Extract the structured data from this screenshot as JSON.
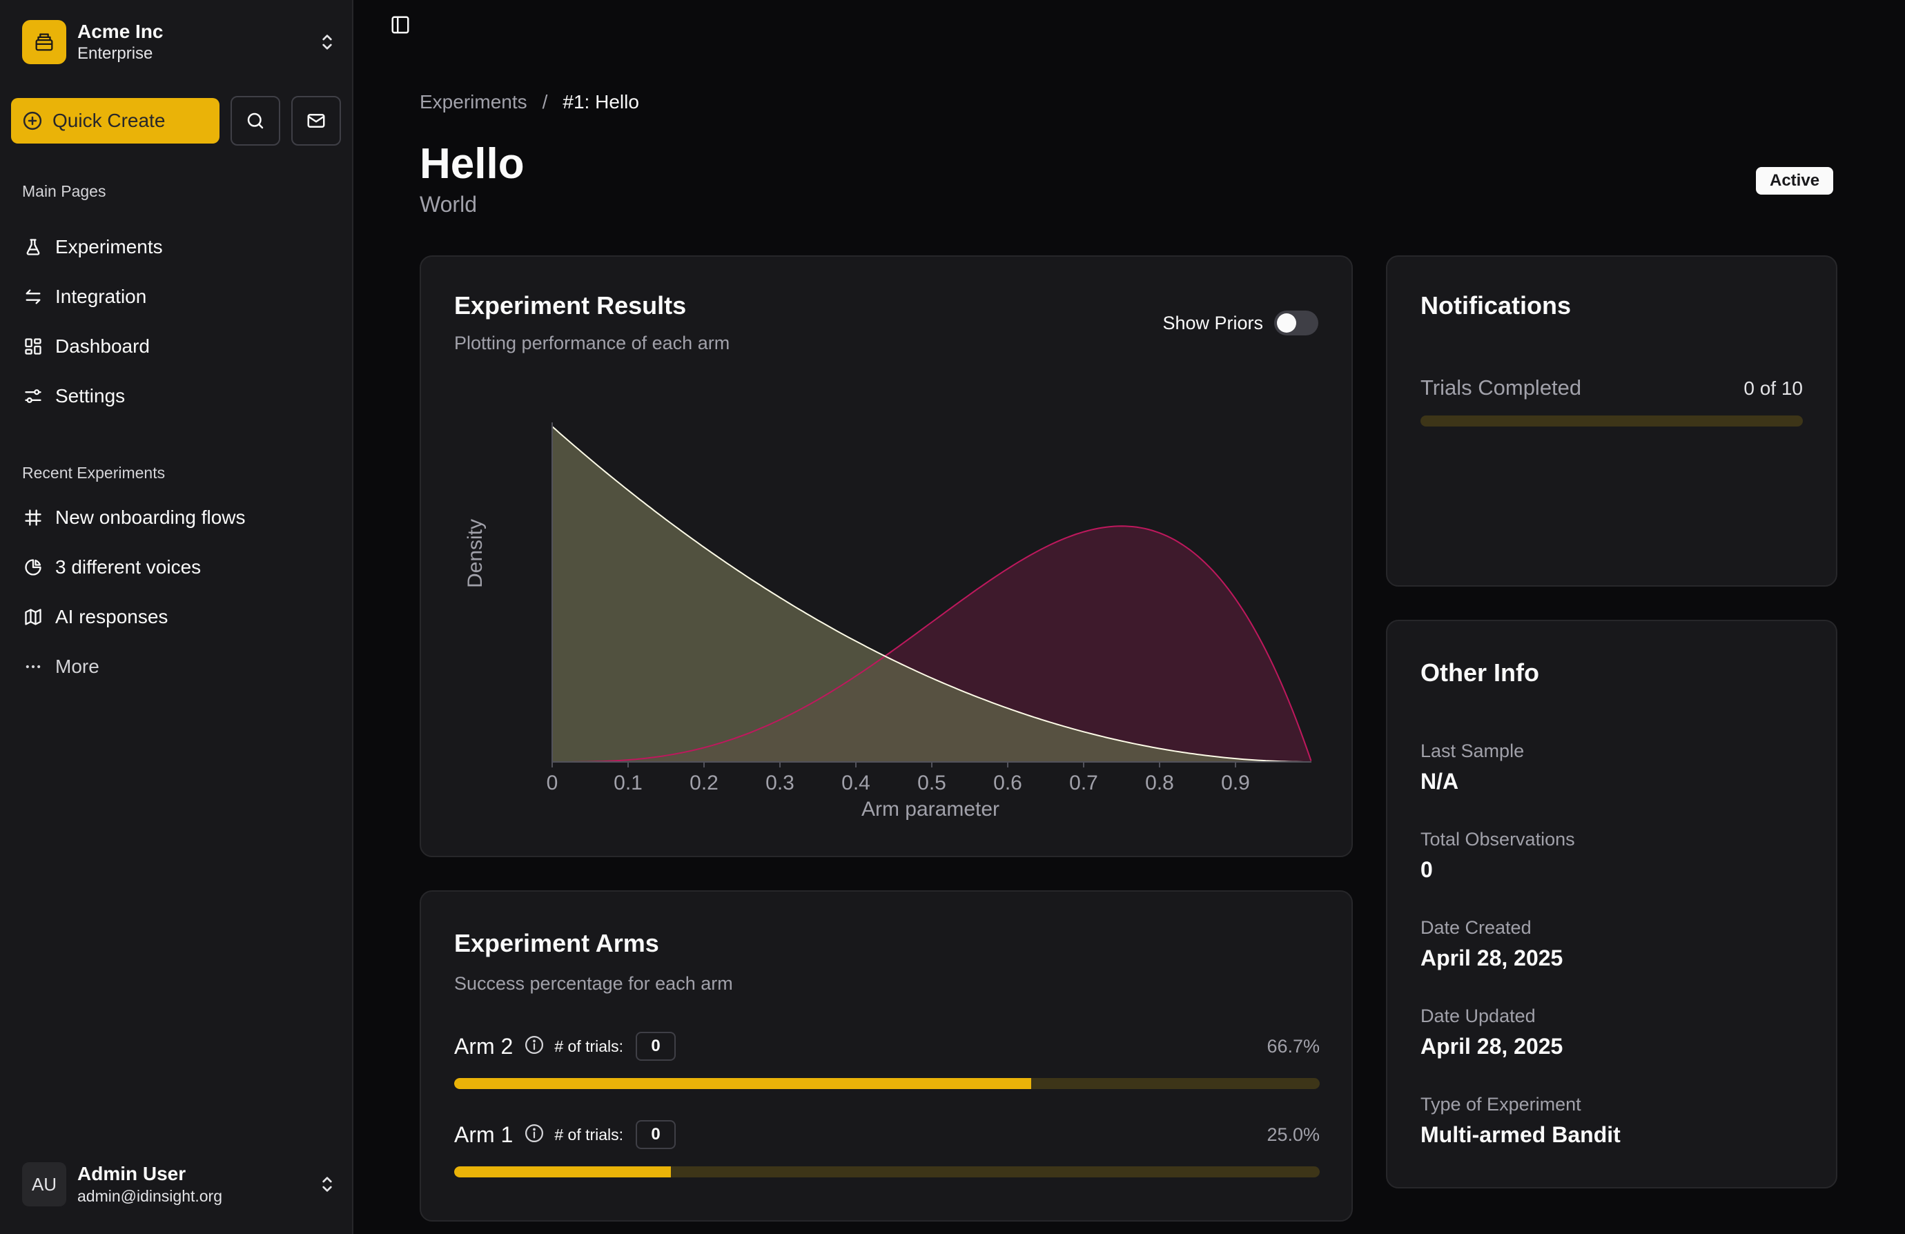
{
  "org": {
    "name": "Acme Inc",
    "plan": "Enterprise"
  },
  "sidebar": {
    "quick_create_label": "Quick Create",
    "main_pages_label": "Main Pages",
    "main_pages": [
      {
        "label": "Experiments",
        "icon": "flask-icon"
      },
      {
        "label": "Integration",
        "icon": "arrows-icon"
      },
      {
        "label": "Dashboard",
        "icon": "dashboard-icon"
      },
      {
        "label": "Settings",
        "icon": "sliders-icon"
      }
    ],
    "recent_label": "Recent Experiments",
    "recent": [
      {
        "label": "New onboarding flows",
        "icon": "frame-icon"
      },
      {
        "label": "3 different voices",
        "icon": "pie-chart-icon"
      },
      {
        "label": "AI responses",
        "icon": "map-icon"
      }
    ],
    "more_label": "More"
  },
  "user": {
    "initials": "AU",
    "name": "Admin User",
    "email": "admin@idinsight.org"
  },
  "breadcrumb": {
    "parent": "Experiments",
    "separator": "/",
    "current": "#1: Hello"
  },
  "page": {
    "title": "Hello",
    "subtitle": "World",
    "status": "Active"
  },
  "results_card": {
    "title": "Experiment Results",
    "description": "Plotting performance of each arm",
    "show_priors_label": "Show Priors",
    "show_priors": false
  },
  "chart_data": {
    "type": "area",
    "title": "",
    "xlabel": "Arm parameter",
    "ylabel": "Density",
    "xlim": [
      0,
      1
    ],
    "x_ticks": [
      "0",
      "0.1",
      "0.2",
      "0.3",
      "0.4",
      "0.5",
      "0.6",
      "0.7",
      "0.8",
      "0.9"
    ],
    "grid": false,
    "series": [
      {
        "distribution": "beta",
        "alpha": 1,
        "beta": 3,
        "color": "#fefce8",
        "fill": "#5c5c45"
      },
      {
        "distribution": "beta",
        "alpha": 4,
        "beta": 2,
        "color": "#be185d",
        "fill": "#3e1a2c"
      }
    ]
  },
  "arms_card": {
    "title": "Experiment Arms",
    "description": "Success percentage for each arm",
    "trials_label": "# of trials:",
    "arms": [
      {
        "name": "Arm 2",
        "trials": "0",
        "percent_label": "66.7%",
        "percent": 66.7
      },
      {
        "name": "Arm 1",
        "trials": "0",
        "percent_label": "25.0%",
        "percent": 25.0
      }
    ]
  },
  "notifications": {
    "title": "Notifications",
    "trials_label": "Trials Completed",
    "trials_value": "0 of 10",
    "trials_fraction": 0
  },
  "other_info": {
    "title": "Other Info",
    "items": [
      {
        "label": "Last Sample",
        "value": "N/A"
      },
      {
        "label": "Total Observations",
        "value": "0"
      },
      {
        "label": "Date Created",
        "value": "April 28, 2025"
      },
      {
        "label": "Date Updated",
        "value": "April 28, 2025"
      },
      {
        "label": "Type of Experiment",
        "value": "Multi-armed Bandit"
      }
    ]
  },
  "colors": {
    "accent": "#eab308",
    "background": "#0a0a0c",
    "card": "#18181b"
  }
}
